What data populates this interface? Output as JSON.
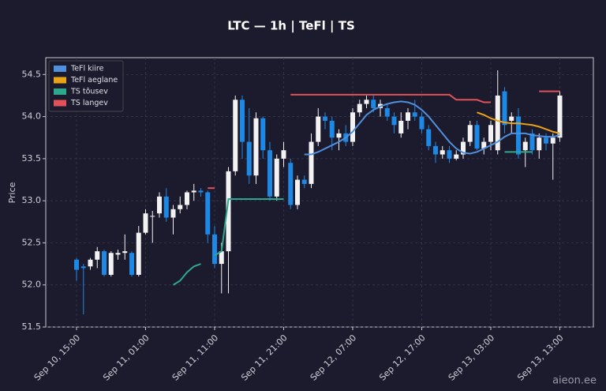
{
  "chart_data": {
    "type": "candlestick",
    "title": "LTC — 1h  |  TeFl  |  TS",
    "ylabel": "Price",
    "watermark": "aieon.ee",
    "categories": [
      "Sep 10, 15:00",
      null,
      null,
      null,
      null,
      null,
      null,
      null,
      null,
      null,
      "Sep 11, 01:00",
      null,
      null,
      null,
      null,
      null,
      null,
      null,
      null,
      null,
      "Sep 11, 11:00",
      null,
      null,
      null,
      null,
      null,
      null,
      null,
      null,
      null,
      "Sep 11, 21:00",
      null,
      null,
      null,
      null,
      null,
      null,
      null,
      null,
      null,
      "Sep 12, 07:00",
      null,
      null,
      null,
      null,
      null,
      null,
      null,
      null,
      null,
      "Sep 12, 17:00",
      null,
      null,
      null,
      null,
      null,
      null,
      null,
      null,
      null,
      "Sep 13, 03:00",
      null,
      null,
      null,
      null,
      null,
      null,
      null,
      null,
      null,
      "Sep 13, 13:00"
    ],
    "open": [
      52.3,
      52.22,
      52.22,
      52.3,
      52.4,
      52.12,
      52.36,
      52.38,
      52.38,
      52.12,
      52.62,
      52.82,
      52.85,
      53.05,
      52.8,
      52.9,
      52.95,
      53.1,
      53.12,
      53.1,
      52.6,
      52.25,
      52.4,
      53.35,
      54.2,
      53.7,
      53.3,
      53.98,
      53.6,
      53.05,
      53.5,
      53.45,
      52.95,
      53.25,
      53.2,
      53.7,
      54.0,
      53.95,
      53.75,
      53.8,
      53.7,
      54.05,
      54.15,
      54.2,
      54.1,
      54.1,
      54.0,
      53.8,
      53.95,
      54.05,
      54.0,
      53.85,
      53.65,
      53.55,
      53.6,
      53.5,
      53.55,
      53.7,
      53.9,
      53.62,
      53.7,
      53.6,
      54.3,
      53.95,
      54.0,
      53.6,
      53.8,
      53.6,
      53.75,
      53.68,
      53.75
    ],
    "high": [
      52.32,
      52.25,
      52.32,
      52.45,
      52.42,
      52.4,
      52.42,
      52.6,
      52.4,
      52.7,
      52.9,
      52.88,
      53.1,
      53.15,
      52.95,
      53.05,
      53.12,
      53.2,
      53.15,
      53.12,
      52.7,
      52.5,
      53.4,
      54.25,
      54.25,
      54.1,
      54.05,
      54.0,
      53.7,
      53.55,
      53.7,
      53.5,
      53.3,
      53.3,
      53.8,
      54.1,
      54.05,
      54.0,
      53.85,
      53.9,
      54.1,
      54.2,
      54.25,
      54.25,
      54.2,
      54.15,
      54.05,
      54.05,
      54.1,
      54.2,
      54.05,
      53.9,
      53.7,
      53.65,
      53.65,
      53.6,
      53.75,
      53.95,
      53.95,
      53.75,
      53.95,
      54.55,
      54.35,
      54.05,
      54.1,
      53.75,
      53.85,
      53.8,
      53.8,
      53.8,
      54.3
    ],
    "low": [
      52.05,
      51.65,
      52.18,
      52.2,
      52.1,
      52.1,
      52.3,
      52.3,
      52.1,
      52.1,
      52.6,
      52.5,
      52.8,
      52.75,
      52.6,
      52.85,
      52.9,
      53.0,
      53.05,
      52.5,
      52.2,
      51.9,
      51.9,
      53.3,
      53.5,
      53.2,
      53.2,
      53.5,
      53.0,
      53.0,
      53.4,
      52.9,
      52.9,
      53.15,
      53.15,
      53.65,
      53.85,
      53.6,
      53.6,
      53.65,
      53.65,
      54.0,
      54.1,
      54.05,
      54.0,
      53.95,
      53.8,
      53.75,
      53.85,
      53.95,
      53.8,
      53.6,
      53.45,
      53.5,
      53.45,
      53.48,
      53.5,
      53.65,
      53.6,
      53.55,
      53.6,
      53.55,
      53.8,
      53.8,
      53.5,
      53.4,
      53.55,
      53.5,
      53.6,
      53.25,
      53.7
    ],
    "close": [
      52.18,
      52.2,
      52.3,
      52.4,
      52.12,
      52.38,
      52.38,
      52.4,
      52.12,
      52.62,
      52.85,
      52.82,
      53.05,
      52.8,
      52.9,
      52.95,
      53.1,
      53.12,
      53.1,
      52.6,
      52.25,
      52.4,
      53.35,
      54.2,
      53.7,
      53.3,
      53.98,
      53.6,
      53.05,
      53.5,
      53.6,
      52.95,
      53.25,
      53.2,
      53.7,
      54.0,
      53.95,
      53.75,
      53.8,
      53.7,
      54.05,
      54.15,
      54.2,
      54.1,
      54.15,
      54.0,
      53.9,
      53.95,
      54.05,
      54.0,
      53.85,
      53.65,
      53.55,
      53.6,
      53.5,
      53.55,
      53.7,
      53.9,
      53.62,
      53.7,
      53.9,
      54.25,
      53.9,
      54.0,
      53.55,
      53.7,
      53.6,
      53.75,
      53.68,
      53.75,
      54.25
    ],
    "up_color": "#f2f2f2",
    "down_color": "#1e88e5",
    "series": [
      {
        "name": "TeFl kiire",
        "color": "#4f8fdc",
        "values": [
          null,
          null,
          null,
          null,
          null,
          null,
          null,
          null,
          null,
          null,
          null,
          null,
          null,
          null,
          null,
          null,
          null,
          null,
          null,
          null,
          null,
          null,
          null,
          null,
          null,
          null,
          null,
          null,
          null,
          null,
          null,
          null,
          null,
          53.55,
          53.55,
          53.58,
          53.62,
          53.66,
          53.7,
          53.75,
          53.82,
          53.92,
          54.02,
          54.08,
          54.12,
          54.15,
          54.17,
          54.18,
          54.17,
          54.14,
          54.08,
          54.0,
          53.9,
          53.8,
          53.7,
          53.62,
          53.57,
          53.56,
          53.58,
          53.62,
          53.66,
          53.7,
          53.76,
          53.8,
          53.8,
          53.8,
          53.78,
          53.77,
          53.76,
          53.76,
          53.78
        ]
      },
      {
        "name": "TeFl aeglane",
        "color": "#e8a317",
        "values": [
          null,
          null,
          null,
          null,
          null,
          null,
          null,
          null,
          null,
          null,
          null,
          null,
          null,
          null,
          null,
          null,
          null,
          null,
          null,
          null,
          null,
          null,
          null,
          null,
          null,
          null,
          null,
          null,
          null,
          null,
          null,
          null,
          null,
          null,
          null,
          null,
          null,
          null,
          null,
          null,
          null,
          null,
          null,
          null,
          null,
          null,
          null,
          null,
          null,
          null,
          null,
          null,
          null,
          null,
          null,
          null,
          null,
          null,
          54.05,
          54.02,
          53.98,
          53.95,
          53.93,
          53.92,
          53.92,
          53.91,
          53.9,
          53.88,
          53.85,
          53.82,
          53.8
        ]
      },
      {
        "name": "TS tõusev",
        "color": "#2ea88c",
        "values": [
          null,
          null,
          null,
          null,
          null,
          null,
          null,
          null,
          null,
          null,
          null,
          null,
          null,
          null,
          52.0,
          52.05,
          52.15,
          52.22,
          52.25,
          null,
          52.35,
          52.4,
          53.02,
          53.02,
          53.02,
          53.02,
          53.02,
          53.02,
          53.02,
          53.02,
          53.02,
          null,
          null,
          null,
          null,
          null,
          null,
          null,
          null,
          null,
          null,
          null,
          null,
          null,
          null,
          null,
          null,
          null,
          null,
          null,
          null,
          null,
          null,
          null,
          null,
          null,
          null,
          null,
          null,
          null,
          null,
          null,
          53.58,
          53.58,
          53.58,
          53.58,
          53.58,
          null,
          null,
          null,
          null
        ]
      },
      {
        "name": "TS langev",
        "color": "#e0525a",
        "values": [
          null,
          null,
          null,
          null,
          null,
          null,
          null,
          null,
          null,
          null,
          null,
          null,
          null,
          null,
          null,
          null,
          null,
          null,
          null,
          53.15,
          53.15,
          null,
          null,
          null,
          null,
          null,
          null,
          null,
          null,
          null,
          null,
          54.26,
          54.26,
          54.26,
          54.26,
          54.26,
          54.26,
          54.26,
          54.26,
          54.26,
          54.26,
          54.26,
          54.26,
          54.26,
          54.26,
          54.26,
          54.26,
          54.26,
          54.26,
          54.26,
          54.26,
          54.26,
          54.26,
          54.26,
          54.26,
          54.2,
          54.2,
          54.2,
          54.2,
          54.17,
          54.17,
          null,
          null,
          null,
          null,
          null,
          null,
          54.3,
          54.3,
          54.3,
          54.3
        ]
      }
    ],
    "ylim": [
      51.5,
      54.7
    ],
    "yticks": [
      51.5,
      {
        "value": 52,
        "label": "52.0"
      },
      52.5,
      {
        "value": 53,
        "label": "53.0"
      },
      53.5,
      {
        "value": 54,
        "label": "54.0"
      },
      54.5
    ],
    "grid": true,
    "legend": "upper left"
  }
}
